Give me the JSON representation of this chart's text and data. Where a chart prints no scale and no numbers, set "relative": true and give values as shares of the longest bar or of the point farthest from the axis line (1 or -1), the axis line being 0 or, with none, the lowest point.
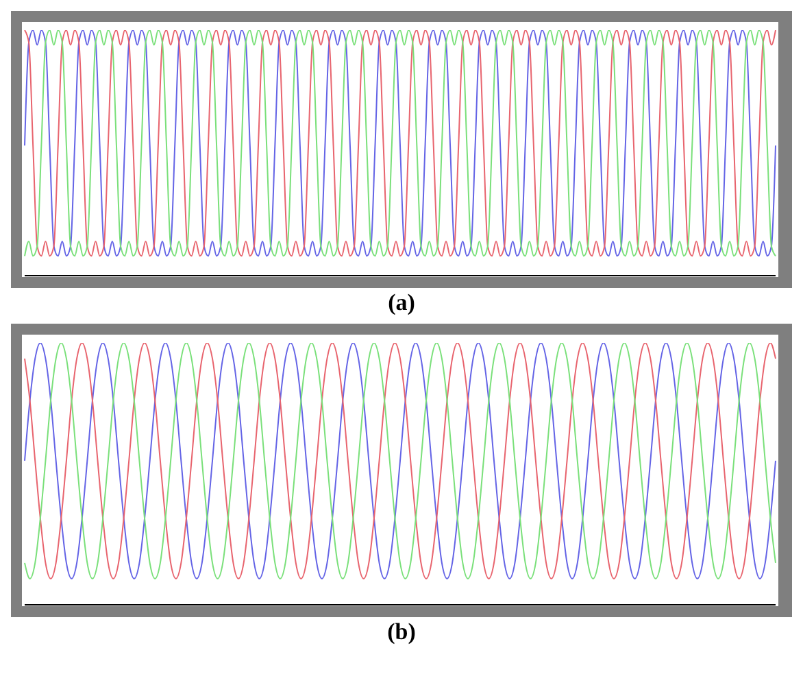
{
  "chart_data": [
    {
      "type": "line",
      "relative": true,
      "marker": "none",
      "line_style": "solid",
      "annotations": [
        "(a)"
      ],
      "categories": [
        null,
        null,
        null,
        null,
        null,
        null,
        null,
        null,
        null,
        null,
        null,
        null,
        null,
        null,
        null,
        null,
        null,
        null,
        null,
        null,
        null,
        null,
        null,
        null,
        null,
        null,
        null,
        null,
        null,
        null,
        null,
        null,
        null,
        null,
        null,
        null,
        null,
        null,
        null,
        null,
        null,
        null,
        null,
        null,
        null,
        null,
        null,
        null,
        null,
        null,
        null,
        null,
        null,
        null,
        null,
        null,
        null,
        null,
        null,
        null,
        null,
        null,
        null,
        null,
        null,
        null,
        null,
        null,
        null,
        null,
        null,
        null,
        null,
        null,
        null,
        null,
        null,
        null,
        null,
        null,
        null,
        null,
        null,
        null,
        null,
        null,
        null,
        null,
        null,
        null,
        null,
        null,
        null,
        null,
        null,
        null,
        null,
        null,
        null,
        null,
        null,
        null,
        null,
        null,
        null,
        null,
        null,
        null,
        null,
        null,
        null,
        null,
        null,
        null,
        null,
        null,
        null,
        null,
        null,
        null,
        null,
        null,
        null,
        null,
        null,
        null,
        null,
        null,
        null,
        null,
        null,
        null,
        null,
        null,
        null,
        null,
        null,
        null,
        null,
        null,
        null,
        null,
        null,
        null,
        null,
        null,
        null,
        null,
        null,
        null,
        null,
        null,
        null,
        null,
        null,
        null,
        null,
        null,
        null,
        null,
        null,
        null,
        null,
        null,
        null,
        null,
        null,
        null,
        null,
        null,
        null,
        null,
        null,
        null,
        null,
        null,
        null,
        null,
        null,
        null,
        null
      ],
      "series": [
        {
          "color": "#6464e6",
          "values": [
            0.53,
            0.95,
            1,
            0.94,
            1,
            0.95,
            0.53,
            0.12,
            0.08,
            0.14,
            0.08,
            0.12,
            0.53,
            0.95,
            1,
            0.94,
            1,
            0.95,
            0.53,
            0.12,
            0.08,
            0.14,
            0.08,
            0.12,
            0.53,
            0.95,
            1,
            0.94,
            1,
            0.95,
            0.53,
            0.12,
            0.08,
            0.14,
            0.08,
            0.12,
            0.53,
            0.95,
            1,
            0.94,
            1,
            0.95,
            0.53,
            0.12,
            0.08,
            0.14,
            0.08,
            0.12,
            0.53,
            0.95,
            1,
            0.94,
            1,
            0.95,
            0.53,
            0.12,
            0.08,
            0.14,
            0.08,
            0.12,
            0.53,
            0.95,
            1,
            0.94,
            1,
            0.95,
            0.53,
            0.12,
            0.08,
            0.14,
            0.08,
            0.12,
            0.53,
            0.95,
            1,
            0.94,
            1,
            0.95,
            0.53,
            0.12,
            0.08,
            0.14,
            0.08,
            0.12,
            0.53,
            0.95,
            1,
            0.94,
            1,
            0.95,
            0.53,
            0.12,
            0.08,
            0.14,
            0.08,
            0.12,
            0.53,
            0.95,
            1,
            0.94,
            1,
            0.95,
            0.53,
            0.12,
            0.08,
            0.14,
            0.08,
            0.12,
            0.53,
            0.95,
            1,
            0.94,
            1,
            0.95,
            0.53,
            0.12,
            0.08,
            0.14,
            0.08,
            0.12,
            0.53,
            0.95,
            1,
            0.94,
            1,
            0.95,
            0.53,
            0.12,
            0.08,
            0.14,
            0.08,
            0.12,
            0.53,
            0.95,
            1,
            0.94,
            1,
            0.95,
            0.53,
            0.12,
            0.08,
            0.14,
            0.08,
            0.12,
            0.53,
            0.95,
            1,
            0.94,
            1,
            0.95,
            0.53,
            0.12,
            0.08,
            0.14,
            0.08,
            0.12,
            0.53,
            0.95,
            1,
            0.94,
            1,
            0.95,
            0.53,
            0.12,
            0.08,
            0.14,
            0.08,
            0.12,
            0.53,
            0.95,
            1,
            0.94,
            1,
            0.95,
            0.53,
            0.12,
            0.08,
            0.14,
            0.08,
            0.12,
            0.53
          ]
        },
        {
          "color": "#e8646e",
          "values": [
            1,
            0.95,
            0.53,
            0.12,
            0.08,
            0.14,
            0.08,
            0.12,
            0.53,
            0.95,
            1,
            0.94,
            1,
            0.95,
            0.53,
            0.12,
            0.08,
            0.14,
            0.08,
            0.12,
            0.53,
            0.95,
            1,
            0.94,
            1,
            0.95,
            0.53,
            0.12,
            0.08,
            0.14,
            0.08,
            0.12,
            0.53,
            0.95,
            1,
            0.94,
            1,
            0.95,
            0.53,
            0.12,
            0.08,
            0.14,
            0.08,
            0.12,
            0.53,
            0.95,
            1,
            0.94,
            1,
            0.95,
            0.53,
            0.12,
            0.08,
            0.14,
            0.08,
            0.12,
            0.53,
            0.95,
            1,
            0.94,
            1,
            0.95,
            0.53,
            0.12,
            0.08,
            0.14,
            0.08,
            0.12,
            0.53,
            0.95,
            1,
            0.94,
            1,
            0.95,
            0.53,
            0.12,
            0.08,
            0.14,
            0.08,
            0.12,
            0.53,
            0.95,
            1,
            0.94,
            1,
            0.95,
            0.53,
            0.12,
            0.08,
            0.14,
            0.08,
            0.12,
            0.53,
            0.95,
            1,
            0.94,
            1,
            0.95,
            0.53,
            0.12,
            0.08,
            0.14,
            0.08,
            0.12,
            0.53,
            0.95,
            1,
            0.94,
            1,
            0.95,
            0.53,
            0.12,
            0.08,
            0.14,
            0.08,
            0.12,
            0.53,
            0.95,
            1,
            0.94,
            1,
            0.95,
            0.53,
            0.12,
            0.08,
            0.14,
            0.08,
            0.12,
            0.53,
            0.95,
            1,
            0.94,
            1,
            0.95,
            0.53,
            0.12,
            0.08,
            0.14,
            0.08,
            0.12,
            0.53,
            0.95,
            1,
            0.94,
            1,
            0.95,
            0.53,
            0.12,
            0.08,
            0.14,
            0.08,
            0.12,
            0.53,
            0.95,
            1,
            0.94,
            1,
            0.95,
            0.53,
            0.12,
            0.08,
            0.14,
            0.08,
            0.12,
            0.53,
            0.95,
            1,
            0.94,
            1,
            0.95,
            0.53,
            0.12,
            0.08,
            0.14,
            0.08,
            0.12,
            0.53,
            0.95,
            1,
            0.94,
            1
          ]
        },
        {
          "color": "#7ae07a",
          "values": [
            0.08,
            0.14,
            0.08,
            0.12,
            0.53,
            0.95,
            1,
            0.94,
            1,
            0.95,
            0.53,
            0.12,
            0.08,
            0.14,
            0.08,
            0.12,
            0.53,
            0.95,
            1,
            0.94,
            1,
            0.95,
            0.53,
            0.12,
            0.08,
            0.14,
            0.08,
            0.12,
            0.53,
            0.95,
            1,
            0.94,
            1,
            0.95,
            0.53,
            0.12,
            0.08,
            0.14,
            0.08,
            0.12,
            0.53,
            0.95,
            1,
            0.94,
            1,
            0.95,
            0.53,
            0.12,
            0.08,
            0.14,
            0.08,
            0.12,
            0.53,
            0.95,
            1,
            0.94,
            1,
            0.95,
            0.53,
            0.12,
            0.08,
            0.14,
            0.08,
            0.12,
            0.53,
            0.95,
            1,
            0.94,
            1,
            0.95,
            0.53,
            0.12,
            0.08,
            0.14,
            0.08,
            0.12,
            0.53,
            0.95,
            1,
            0.94,
            1,
            0.95,
            0.53,
            0.12,
            0.08,
            0.14,
            0.08,
            0.12,
            0.53,
            0.95,
            1,
            0.94,
            1,
            0.95,
            0.53,
            0.12,
            0.08,
            0.14,
            0.08,
            0.12,
            0.53,
            0.95,
            1,
            0.94,
            1,
            0.95,
            0.53,
            0.12,
            0.08,
            0.14,
            0.08,
            0.12,
            0.53,
            0.95,
            1,
            0.94,
            1,
            0.95,
            0.53,
            0.12,
            0.08,
            0.14,
            0.08,
            0.12,
            0.53,
            0.95,
            1,
            0.94,
            1,
            0.95,
            0.53,
            0.12,
            0.08,
            0.14,
            0.08,
            0.12,
            0.53,
            0.95,
            1,
            0.94,
            1,
            0.95,
            0.53,
            0.12,
            0.08,
            0.14,
            0.08,
            0.12,
            0.53,
            0.95,
            1,
            0.94,
            1,
            0.95,
            0.53,
            0.12,
            0.08,
            0.14,
            0.08,
            0.12,
            0.53,
            0.95,
            1,
            0.94,
            1,
            0.95,
            0.53,
            0.12,
            0.08,
            0.14,
            0.08,
            0.12,
            0.53,
            0.95,
            1,
            0.94,
            1,
            0.95,
            0.53,
            0.12,
            0.08
          ]
        }
      ]
    },
    {
      "type": "line",
      "relative": true,
      "marker": "none",
      "line_style": "solid",
      "annotations": [
        "(b)"
      ],
      "categories": [
        null,
        null,
        null,
        null,
        null,
        null,
        null,
        null,
        null,
        null,
        null,
        null,
        null,
        null,
        null,
        null,
        null,
        null,
        null,
        null,
        null,
        null,
        null,
        null,
        null,
        null,
        null,
        null,
        null,
        null,
        null,
        null,
        null,
        null,
        null,
        null,
        null,
        null,
        null,
        null,
        null,
        null,
        null,
        null,
        null,
        null,
        null,
        null,
        null,
        null,
        null,
        null,
        null,
        null,
        null,
        null,
        null,
        null,
        null,
        null,
        null,
        null,
        null,
        null,
        null,
        null,
        null,
        null,
        null,
        null,
        null,
        null,
        null,
        null,
        null,
        null,
        null,
        null,
        null,
        null,
        null,
        null,
        null,
        null,
        null,
        null,
        null,
        null,
        null,
        null,
        null,
        null,
        null,
        null,
        null,
        null,
        null,
        null,
        null,
        null,
        null,
        null,
        null,
        null,
        null,
        null,
        null,
        null,
        null,
        null,
        null,
        null,
        null,
        null,
        null,
        null,
        null,
        null,
        null,
        null,
        null,
        null,
        null,
        null,
        null,
        null,
        null,
        null,
        null,
        null,
        null,
        null,
        null,
        null,
        null,
        null,
        null,
        null,
        null,
        null,
        null,
        null,
        null,
        null,
        null
      ],
      "series": [
        {
          "color": "#6464e6",
          "values": [
            0.55,
            0.78,
            0.94,
            1,
            0.94,
            0.78,
            0.55,
            0.33,
            0.16,
            0.1,
            0.16,
            0.33,
            0.55,
            0.78,
            0.94,
            1,
            0.94,
            0.78,
            0.55,
            0.33,
            0.16,
            0.1,
            0.16,
            0.33,
            0.55,
            0.78,
            0.94,
            1,
            0.94,
            0.78,
            0.55,
            0.33,
            0.16,
            0.1,
            0.16,
            0.33,
            0.55,
            0.78,
            0.94,
            1,
            0.94,
            0.78,
            0.55,
            0.33,
            0.16,
            0.1,
            0.16,
            0.33,
            0.55,
            0.78,
            0.94,
            1,
            0.94,
            0.78,
            0.55,
            0.33,
            0.16,
            0.1,
            0.16,
            0.33,
            0.55,
            0.78,
            0.94,
            1,
            0.94,
            0.78,
            0.55,
            0.33,
            0.16,
            0.1,
            0.16,
            0.33,
            0.55,
            0.78,
            0.94,
            1,
            0.94,
            0.78,
            0.55,
            0.33,
            0.16,
            0.1,
            0.16,
            0.33,
            0.55,
            0.78,
            0.94,
            1,
            0.94,
            0.78,
            0.55,
            0.33,
            0.16,
            0.1,
            0.16,
            0.33,
            0.55,
            0.78,
            0.94,
            1,
            0.94,
            0.78,
            0.55,
            0.33,
            0.16,
            0.1,
            0.16,
            0.33,
            0.55,
            0.78,
            0.94,
            1,
            0.94,
            0.78,
            0.55,
            0.33,
            0.16,
            0.1,
            0.16,
            0.33,
            0.55,
            0.78,
            0.94,
            1,
            0.94,
            0.78,
            0.55,
            0.33,
            0.16,
            0.1,
            0.16,
            0.33,
            0.55,
            0.78,
            0.94,
            1,
            0.94,
            0.78,
            0.55,
            0.33,
            0.16,
            0.1,
            0.16,
            0.33,
            0.55
          ]
        },
        {
          "color": "#e8646e",
          "values": [
            0.94,
            0.78,
            0.55,
            0.33,
            0.16,
            0.1,
            0.16,
            0.33,
            0.55,
            0.78,
            0.94,
            1,
            0.94,
            0.78,
            0.55,
            0.33,
            0.16,
            0.1,
            0.16,
            0.33,
            0.55,
            0.78,
            0.94,
            1,
            0.94,
            0.78,
            0.55,
            0.33,
            0.16,
            0.1,
            0.16,
            0.33,
            0.55,
            0.78,
            0.94,
            1,
            0.94,
            0.78,
            0.55,
            0.33,
            0.16,
            0.1,
            0.16,
            0.33,
            0.55,
            0.78,
            0.94,
            1,
            0.94,
            0.78,
            0.55,
            0.33,
            0.16,
            0.1,
            0.16,
            0.33,
            0.55,
            0.78,
            0.94,
            1,
            0.94,
            0.78,
            0.55,
            0.33,
            0.16,
            0.1,
            0.16,
            0.33,
            0.55,
            0.78,
            0.94,
            1,
            0.94,
            0.78,
            0.55,
            0.33,
            0.16,
            0.1,
            0.16,
            0.33,
            0.55,
            0.78,
            0.94,
            1,
            0.94,
            0.78,
            0.55,
            0.33,
            0.16,
            0.1,
            0.16,
            0.33,
            0.55,
            0.78,
            0.94,
            1,
            0.94,
            0.78,
            0.55,
            0.33,
            0.16,
            0.1,
            0.16,
            0.33,
            0.55,
            0.78,
            0.94,
            1,
            0.94,
            0.78,
            0.55,
            0.33,
            0.16,
            0.1,
            0.16,
            0.33,
            0.55,
            0.78,
            0.94,
            1,
            0.94,
            0.78,
            0.55,
            0.33,
            0.16,
            0.1,
            0.16,
            0.33,
            0.55,
            0.78,
            0.94,
            1,
            0.94,
            0.78,
            0.55,
            0.33,
            0.16,
            0.1,
            0.16,
            0.33,
            0.55,
            0.78,
            0.94,
            1,
            0.94
          ]
        },
        {
          "color": "#7ae07a",
          "values": [
            0.16,
            0.1,
            0.16,
            0.33,
            0.55,
            0.78,
            0.94,
            1,
            0.94,
            0.78,
            0.55,
            0.33,
            0.16,
            0.1,
            0.16,
            0.33,
            0.55,
            0.78,
            0.94,
            1,
            0.94,
            0.78,
            0.55,
            0.33,
            0.16,
            0.1,
            0.16,
            0.33,
            0.55,
            0.78,
            0.94,
            1,
            0.94,
            0.78,
            0.55,
            0.33,
            0.16,
            0.1,
            0.16,
            0.33,
            0.55,
            0.78,
            0.94,
            1,
            0.94,
            0.78,
            0.55,
            0.33,
            0.16,
            0.1,
            0.16,
            0.33,
            0.55,
            0.78,
            0.94,
            1,
            0.94,
            0.78,
            0.55,
            0.33,
            0.16,
            0.1,
            0.16,
            0.33,
            0.55,
            0.78,
            0.94,
            1,
            0.94,
            0.78,
            0.55,
            0.33,
            0.16,
            0.1,
            0.16,
            0.33,
            0.55,
            0.78,
            0.94,
            1,
            0.94,
            0.78,
            0.55,
            0.33,
            0.16,
            0.1,
            0.16,
            0.33,
            0.55,
            0.78,
            0.94,
            1,
            0.94,
            0.78,
            0.55,
            0.33,
            0.16,
            0.1,
            0.16,
            0.33,
            0.55,
            0.78,
            0.94,
            1,
            0.94,
            0.78,
            0.55,
            0.33,
            0.16,
            0.1,
            0.16,
            0.33,
            0.55,
            0.78,
            0.94,
            1,
            0.94,
            0.78,
            0.55,
            0.33,
            0.16,
            0.1,
            0.16,
            0.33,
            0.55,
            0.78,
            0.94,
            1,
            0.94,
            0.78,
            0.55,
            0.33,
            0.16,
            0.1,
            0.16,
            0.33,
            0.55,
            0.78,
            0.94,
            1,
            0.94,
            0.78,
            0.55,
            0.33,
            0.16
          ]
        }
      ]
    }
  ]
}
